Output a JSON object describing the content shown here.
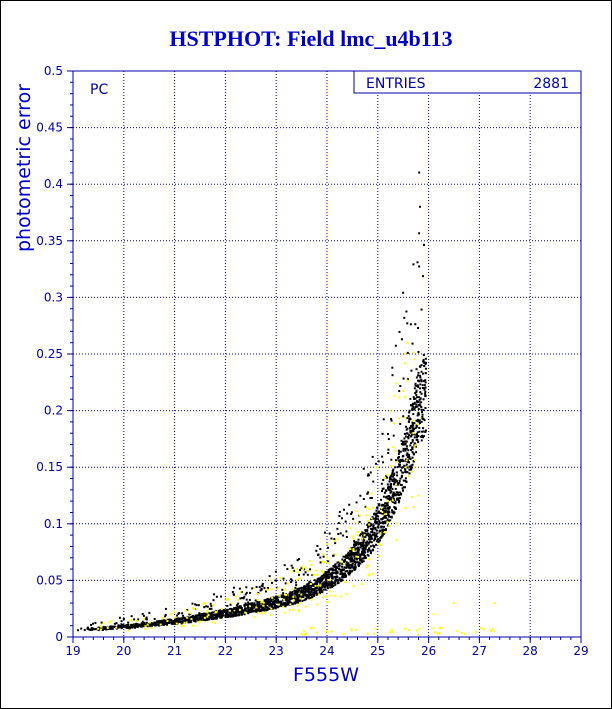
{
  "chart_data": {
    "type": "scatter",
    "title": "HSTPHOT: Field lmc_u4b113",
    "xlabel": "F555W",
    "ylabel": "photometric error",
    "panel_label": "PC",
    "stats_label": "ENTRIES",
    "stats_value": "2881",
    "xlim": [
      19,
      29
    ],
    "ylim": [
      0,
      0.5
    ],
    "x_ticks": [
      "19",
      "20",
      "21",
      "22",
      "23",
      "24",
      "25",
      "26",
      "27",
      "28",
      "29"
    ],
    "y_ticks": [
      "0",
      "0.05",
      "0.1",
      "0.15",
      "0.2",
      "0.25",
      "0.3",
      "0.35",
      "0.4",
      "0.45",
      "0.5"
    ],
    "grid": true,
    "series": [
      {
        "color": "#000000",
        "description_curve": "error rises from ~0.005 at F555W=19 to ~0.21 at F555W=25.9",
        "x": [
          19.1,
          19.3,
          19.5,
          19.7,
          19.9,
          20.1,
          20.3,
          20.5,
          20.7,
          20.9,
          21.1,
          21.3,
          21.5,
          21.7,
          21.9,
          22.1,
          22.3,
          22.5,
          22.7,
          22.9,
          23.1,
          23.3,
          23.5,
          23.7,
          23.9,
          24.1,
          24.3,
          24.5,
          24.7,
          24.9,
          25.0,
          25.1,
          25.2,
          25.3,
          25.4,
          25.5,
          25.6,
          25.7,
          25.8,
          25.9
        ],
        "y": [
          0.006,
          0.007,
          0.007,
          0.008,
          0.009,
          0.009,
          0.01,
          0.011,
          0.012,
          0.013,
          0.014,
          0.015,
          0.017,
          0.018,
          0.02,
          0.021,
          0.023,
          0.025,
          0.027,
          0.029,
          0.031,
          0.034,
          0.037,
          0.041,
          0.046,
          0.052,
          0.059,
          0.068,
          0.078,
          0.09,
          0.097,
          0.105,
          0.114,
          0.124,
          0.136,
          0.15,
          0.165,
          0.182,
          0.198,
          0.21
        ]
      },
      {
        "color": "#ffff00",
        "description_curve": "sparse yellow points scattered around the main locus and along the bottom",
        "x": [
          19.6,
          20.4,
          21.0,
          21.6,
          22.3,
          22.9,
          23.4,
          24.0,
          24.6,
          25.2,
          25.7,
          26.1,
          26.5,
          27.3,
          24.8,
          23.8
        ],
        "y": [
          0.012,
          0.016,
          0.022,
          0.03,
          0.04,
          0.05,
          0.06,
          0.07,
          0.09,
          0.12,
          0.18,
          0.02,
          0.03,
          0.03,
          0.003,
          0.004
        ]
      }
    ]
  }
}
